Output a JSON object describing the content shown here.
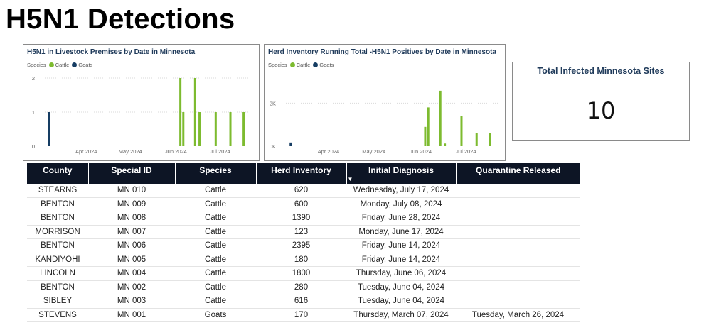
{
  "page": {
    "title": "H5N1 Detections"
  },
  "legend": {
    "label": "Species",
    "cattle": "Cattle",
    "goats": "Goats"
  },
  "colors": {
    "cattle": "#7dbb2f",
    "goats": "#163d63",
    "header_bg": "#0d1525",
    "title": "#1f3a5a"
  },
  "chart_data": [
    {
      "type": "bar",
      "title": "H5N1 in Livestock Premises by Date in Minnesota",
      "xlabel": "",
      "ylabel": "",
      "x_range": [
        "2024-03-01",
        "2024-07-22"
      ],
      "ylim": [
        0,
        2
      ],
      "yticks": [
        0,
        1,
        2
      ],
      "ytick_labels": [
        "0",
        "1",
        "2"
      ],
      "xticks": [
        "2024-04-01",
        "2024-05-01",
        "2024-06-01",
        "2024-07-01"
      ],
      "xtick_labels": [
        "Apr 2024",
        "May 2024",
        "Jun 2024",
        "Jul 2024"
      ],
      "series": [
        {
          "name": "Cattle",
          "points": [
            {
              "x": "2024-06-04",
              "y": 2
            },
            {
              "x": "2024-06-06",
              "y": 1
            },
            {
              "x": "2024-06-14",
              "y": 2
            },
            {
              "x": "2024-06-17",
              "y": 1
            },
            {
              "x": "2024-06-28",
              "y": 1
            },
            {
              "x": "2024-07-08",
              "y": 1
            },
            {
              "x": "2024-07-17",
              "y": 1
            }
          ]
        },
        {
          "name": "Goats",
          "points": [
            {
              "x": "2024-03-07",
              "y": 1
            }
          ]
        }
      ]
    },
    {
      "type": "bar",
      "title": "Herd Inventory Running Total -H5N1 Positives by Date in Minnesota",
      "xlabel": "",
      "ylabel": "",
      "x_range": [
        "2024-03-01",
        "2024-07-22"
      ],
      "ylim": [
        0,
        3000
      ],
      "yticks": [
        0,
        2000
      ],
      "ytick_labels": [
        "0K",
        "2K"
      ],
      "xticks": [
        "2024-04-01",
        "2024-05-01",
        "2024-06-01",
        "2024-07-01"
      ],
      "xtick_labels": [
        "Apr 2024",
        "May 2024",
        "Jun 2024",
        "Jul 2024"
      ],
      "series": [
        {
          "name": "Cattle",
          "points": [
            {
              "x": "2024-06-04",
              "y": 896
            },
            {
              "x": "2024-06-06",
              "y": 1800
            },
            {
              "x": "2024-06-14",
              "y": 2575
            },
            {
              "x": "2024-06-17",
              "y": 123
            },
            {
              "x": "2024-06-28",
              "y": 1390
            },
            {
              "x": "2024-07-08",
              "y": 600
            },
            {
              "x": "2024-07-17",
              "y": 620
            }
          ]
        },
        {
          "name": "Goats",
          "points": [
            {
              "x": "2024-03-07",
              "y": 170
            }
          ]
        }
      ]
    }
  ],
  "kpi": {
    "label": "Total Infected Minnesota Sites",
    "value": "10"
  },
  "table": {
    "columns": [
      "County",
      "Special ID",
      "Species",
      "Herd Inventory",
      "Initial Diagnosis",
      "Quarantine Released"
    ],
    "rows": [
      [
        "STEARNS",
        "MN 010",
        "Cattle",
        "620",
        "Wednesday, July 17, 2024",
        ""
      ],
      [
        "BENTON",
        "MN 009",
        "Cattle",
        "600",
        "Monday, July 08, 2024",
        ""
      ],
      [
        "BENTON",
        "MN 008",
        "Cattle",
        "1390",
        "Friday, June 28, 2024",
        ""
      ],
      [
        "MORRISON",
        "MN 007",
        "Cattle",
        "123",
        "Monday, June 17, 2024",
        ""
      ],
      [
        "BENTON",
        "MN 006",
        "Cattle",
        "2395",
        "Friday, June 14, 2024",
        ""
      ],
      [
        "KANDIYOHI",
        "MN 005",
        "Cattle",
        "180",
        "Friday, June 14, 2024",
        ""
      ],
      [
        "LINCOLN",
        "MN 004",
        "Cattle",
        "1800",
        "Thursday, June 06, 2024",
        ""
      ],
      [
        "BENTON",
        "MN 002",
        "Cattle",
        "280",
        "Tuesday, June 04, 2024",
        ""
      ],
      [
        "SIBLEY",
        "MN 003",
        "Cattle",
        "616",
        "Tuesday, June 04, 2024",
        ""
      ],
      [
        "STEVENS",
        "MN 001",
        "Goats",
        "170",
        "Thursday, March 07, 2024",
        "Tuesday, March 26, 2024"
      ]
    ]
  }
}
